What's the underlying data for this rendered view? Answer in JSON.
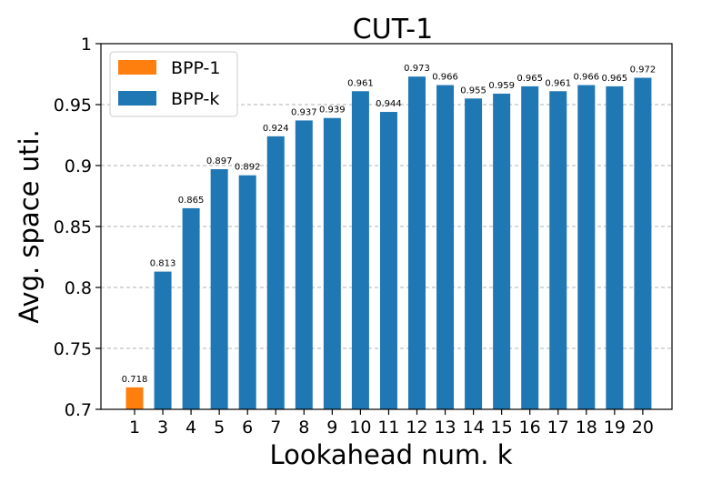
{
  "chart_data": {
    "type": "bar",
    "title": "CUT-1",
    "xlabel": "Lookahead num. k",
    "ylabel": "Avg. space uti.",
    "ylim": [
      0.7,
      1.0
    ],
    "grid": "horizontal-dashed",
    "legend_position": "top-left",
    "categories": [
      "1",
      "3",
      "4",
      "5",
      "6",
      "7",
      "8",
      "9",
      "10",
      "11",
      "12",
      "13",
      "14",
      "15",
      "16",
      "17",
      "18",
      "19",
      "20"
    ],
    "yticks": [
      0.7,
      0.75,
      0.8,
      0.85,
      0.9,
      0.95,
      1
    ],
    "ytick_labels": [
      "0.7",
      "0.75",
      "0.8",
      "0.85",
      "0.9",
      "0.95",
      "1"
    ],
    "series": [
      {
        "name": "BPP-1",
        "color": "#ff7f0e",
        "values": [
          0.718,
          null,
          null,
          null,
          null,
          null,
          null,
          null,
          null,
          null,
          null,
          null,
          null,
          null,
          null,
          null,
          null,
          null,
          null
        ]
      },
      {
        "name": "BPP-k",
        "color": "#1f77b4",
        "values": [
          null,
          0.813,
          0.865,
          0.897,
          0.892,
          0.924,
          0.937,
          0.939,
          0.961,
          0.944,
          0.973,
          0.966,
          0.955,
          0.959,
          0.965,
          0.961,
          0.966,
          0.965,
          0.972
        ]
      }
    ],
    "data_labels": [
      "0.718",
      "0.813",
      "0.865",
      "0.897",
      "0.892",
      "0.924",
      "0.937",
      "0.939",
      "0.961",
      "0.944",
      "0.973",
      "0.966",
      "0.955",
      "0.959",
      "0.965",
      "0.961",
      "0.966",
      "0.965",
      "0.972"
    ]
  }
}
